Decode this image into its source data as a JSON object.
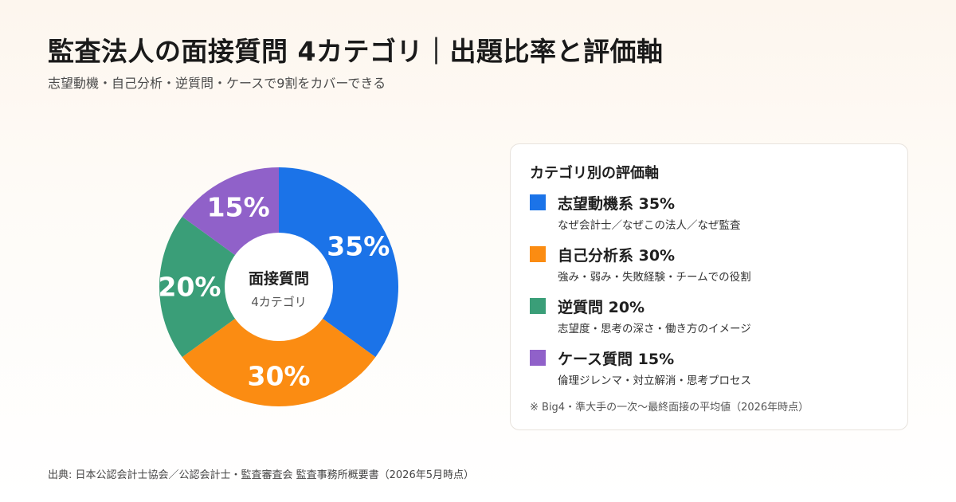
{
  "header": {
    "title": "監査法人の面接質問 4カテゴリ｜出題比率と評価軸",
    "subtitle": "志望動機・自己分析・逆質問・ケースで9割をカバーできる"
  },
  "chart_data": {
    "type": "pie",
    "categories": [
      "志望動機系",
      "自己分析系",
      "逆質問",
      "ケース質問"
    ],
    "values": [
      35,
      30,
      20,
      15
    ],
    "data_labels": [
      "35%",
      "30%",
      "20%",
      "15%"
    ],
    "colors": [
      "#1b73e8",
      "#fb8c12",
      "#3a9e78",
      "#9061c9"
    ],
    "center_title": "面接質問",
    "center_subtitle": "4カテゴリ"
  },
  "legend": {
    "title": "カテゴリ別の評価軸",
    "items": [
      {
        "name": "志望動機系 35%",
        "desc": "なぜ会計士／なぜこの法人／なぜ監査",
        "color": "#1b73e8"
      },
      {
        "name": "自己分析系 30%",
        "desc": "強み・弱み・失敗経験・チームでの役割",
        "color": "#fb8c12"
      },
      {
        "name": "逆質問 20%",
        "desc": "志望度・思考の深さ・働き方のイメージ",
        "color": "#3a9e78"
      },
      {
        "name": "ケース質問 15%",
        "desc": "倫理ジレンマ・対立解消・思考プロセス",
        "color": "#9061c9"
      }
    ],
    "note": "※ Big4・準大手の一次〜最終面接の平均値（2026年時点）"
  },
  "footer": {
    "source": "出典: 日本公認会計士協会／公認会計士・監査審査会 監査事務所概要書（2026年5月時点）"
  }
}
